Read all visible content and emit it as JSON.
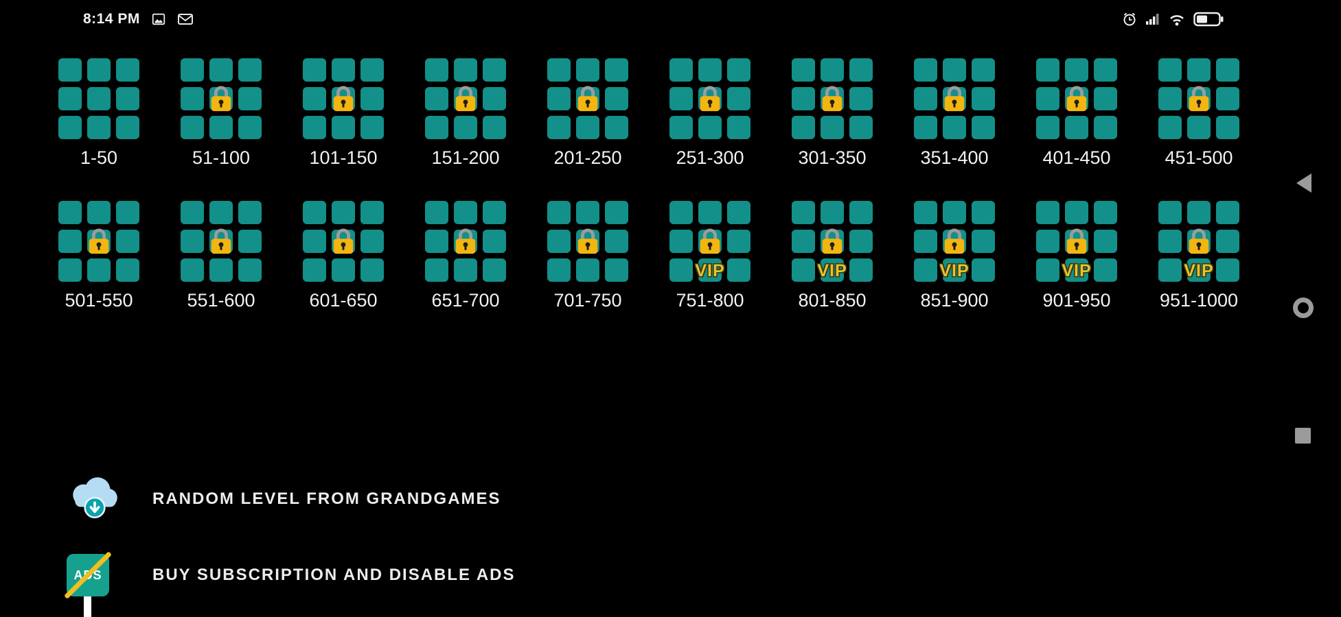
{
  "status_bar": {
    "time": "8:14 PM",
    "left_icons": [
      "photo-notification-icon",
      "mail-notification-icon"
    ],
    "right_icons": [
      "alarm-icon",
      "signal-icon",
      "wifi-icon",
      "battery-icon"
    ]
  },
  "vip_label": "VIP",
  "packs": [
    {
      "label": "1-50",
      "locked": false,
      "vip": false
    },
    {
      "label": "51-100",
      "locked": true,
      "vip": false
    },
    {
      "label": "101-150",
      "locked": true,
      "vip": false
    },
    {
      "label": "151-200",
      "locked": true,
      "vip": false
    },
    {
      "label": "201-250",
      "locked": true,
      "vip": false
    },
    {
      "label": "251-300",
      "locked": true,
      "vip": false
    },
    {
      "label": "301-350",
      "locked": true,
      "vip": false
    },
    {
      "label": "351-400",
      "locked": true,
      "vip": false
    },
    {
      "label": "401-450",
      "locked": true,
      "vip": false
    },
    {
      "label": "451-500",
      "locked": true,
      "vip": false
    },
    {
      "label": "501-550",
      "locked": true,
      "vip": false
    },
    {
      "label": "551-600",
      "locked": true,
      "vip": false
    },
    {
      "label": "601-650",
      "locked": true,
      "vip": false
    },
    {
      "label": "651-700",
      "locked": true,
      "vip": false
    },
    {
      "label": "701-750",
      "locked": true,
      "vip": false
    },
    {
      "label": "751-800",
      "locked": true,
      "vip": true
    },
    {
      "label": "801-850",
      "locked": true,
      "vip": true
    },
    {
      "label": "851-900",
      "locked": true,
      "vip": true
    },
    {
      "label": "901-950",
      "locked": true,
      "vip": true
    },
    {
      "label": "951-1000",
      "locked": true,
      "vip": true
    }
  ],
  "menu": {
    "ads_icon_text": "ADS",
    "items": [
      {
        "label": "RANDOM LEVEL FROM GRANDGAMES",
        "icon": "cloud-download-icon"
      },
      {
        "label": "BUY SUBSCRIPTION AND DISABLE ADS",
        "icon": "no-ads-icon"
      }
    ]
  },
  "nav_bar": {
    "buttons": [
      "back",
      "home",
      "recents"
    ]
  },
  "colors": {
    "background": "#000000",
    "tile_teal": "#139089",
    "lock_gold": "#f3b50f",
    "vip_gold": "#e3c434",
    "menu_accent_teal": "#16a18f",
    "slash_yellow": "#f0c020",
    "nav_gray": "#9b9b9b"
  }
}
